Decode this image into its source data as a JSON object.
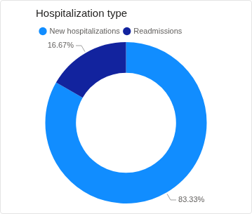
{
  "chart_data": {
    "type": "doughnut",
    "title": "Hospitalization type",
    "categories": [
      "New hospitalizations",
      "Readmissions"
    ],
    "values": [
      83.33,
      16.67
    ],
    "value_labels": [
      "83.33%",
      "16.67%"
    ],
    "colors": [
      "#118DFF",
      "#12239E"
    ],
    "legend": "top-left",
    "data_labels": true
  }
}
